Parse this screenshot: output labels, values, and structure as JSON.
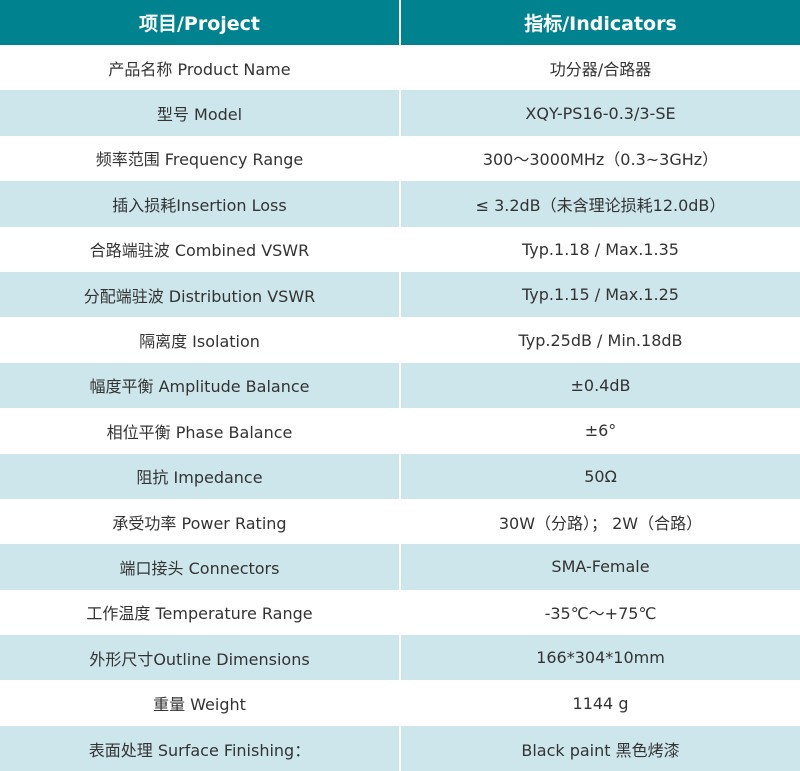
{
  "header": {
    "col1": "项目/Project",
    "col2": "指标/Indicators"
  },
  "colors": {
    "header_bg": "#00838f",
    "alt_row_bg": "#cde6eb"
  },
  "rows": [
    {
      "label": "产品名称 Product Name",
      "value": "功分器/合路器"
    },
    {
      "label": "型号 Model",
      "value": "XQY-PS16-0.3/3-SE"
    },
    {
      "label": "频率范围 Frequency Range",
      "value": "300～3000MHz（0.3~3GHz）"
    },
    {
      "label": "插入损耗Insertion Loss",
      "value": "≤ 3.2dB（未含理论损耗12.0dB）"
    },
    {
      "label": "合路端驻波 Combined VSWR",
      "value": "Typ.1.18 / Max.1.35"
    },
    {
      "label": "分配端驻波 Distribution VSWR",
      "value": "Typ.1.15 / Max.1.25"
    },
    {
      "label": "隔离度 Isolation",
      "value": "Typ.25dB / Min.18dB"
    },
    {
      "label": "幅度平衡 Amplitude Balance",
      "value": "±0.4dB"
    },
    {
      "label": "相位平衡 Phase Balance",
      "value": "±6°"
    },
    {
      "label": "阻抗 Impedance",
      "value": "50Ω"
    },
    {
      "label": "承受功率 Power Rating",
      "value": "30W（分路）； 2W（合路）"
    },
    {
      "label": "端口接头 Connectors",
      "value": "SMA-Female"
    },
    {
      "label": "工作温度 Temperature Range",
      "value": "-35℃～+75℃"
    },
    {
      "label": "外形尺寸Outline Dimensions",
      "value": "166*304*10mm"
    },
    {
      "label": "重量 Weight",
      "value": "1144 g"
    },
    {
      "label": "表面处理 Surface Finishing：",
      "value": "Black paint 黑色烤漆"
    }
  ]
}
